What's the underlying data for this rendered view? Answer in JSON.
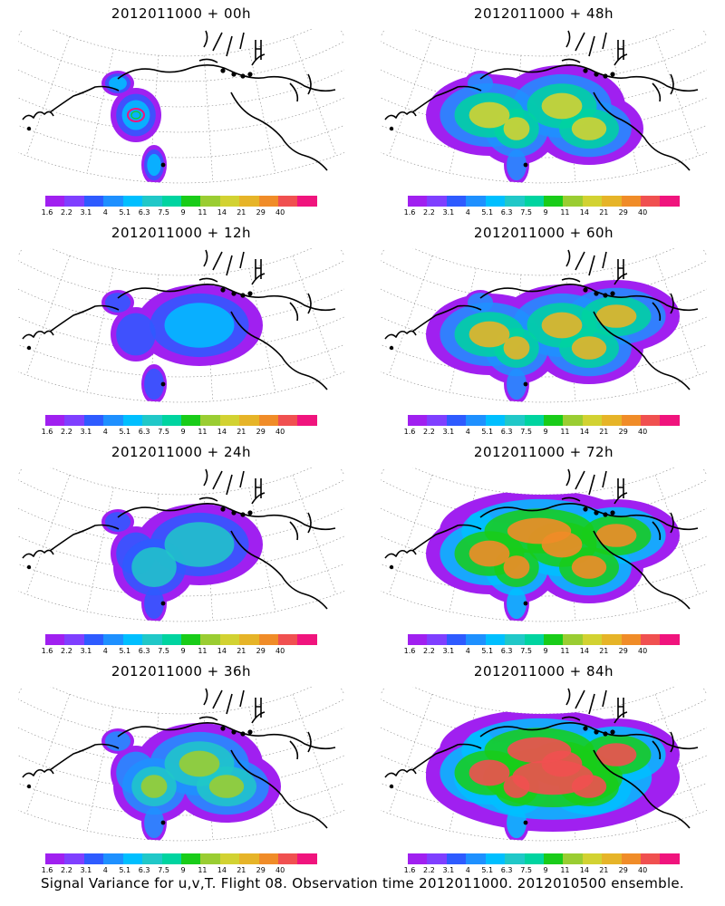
{
  "caption": "Signal Variance for u,v,T. Flight 08. Observation time 2012011000. 2012010500 ensemble.",
  "colorbar": {
    "labels": [
      "1.6",
      "2.2",
      "3.1",
      "4",
      "5.1",
      "6.3",
      "7.5",
      "9",
      "11",
      "14",
      "21",
      "29",
      "40"
    ],
    "colors": [
      "#a020f0",
      "#7f3fff",
      "#2e5bff",
      "#1e90ff",
      "#00bfff",
      "#20c8c8",
      "#00d4a0",
      "#19cc19",
      "#9acd32",
      "#d2d232",
      "#e6b428",
      "#f08c28",
      "#f05050",
      "#f0147d"
    ]
  },
  "panels": [
    {
      "title": "2012011000 + 00h",
      "level": 0
    },
    {
      "title": "2012011000 + 48h",
      "level": 4
    },
    {
      "title": "2012011000 + 12h",
      "level": 1
    },
    {
      "title": "2012011000 + 60h",
      "level": 5
    },
    {
      "title": "2012011000 + 24h",
      "level": 2
    },
    {
      "title": "2012011000 + 72h",
      "level": 6
    },
    {
      "title": "2012011000 + 36h",
      "level": 3
    },
    {
      "title": "2012011000 + 84h",
      "level": 7
    }
  ]
}
